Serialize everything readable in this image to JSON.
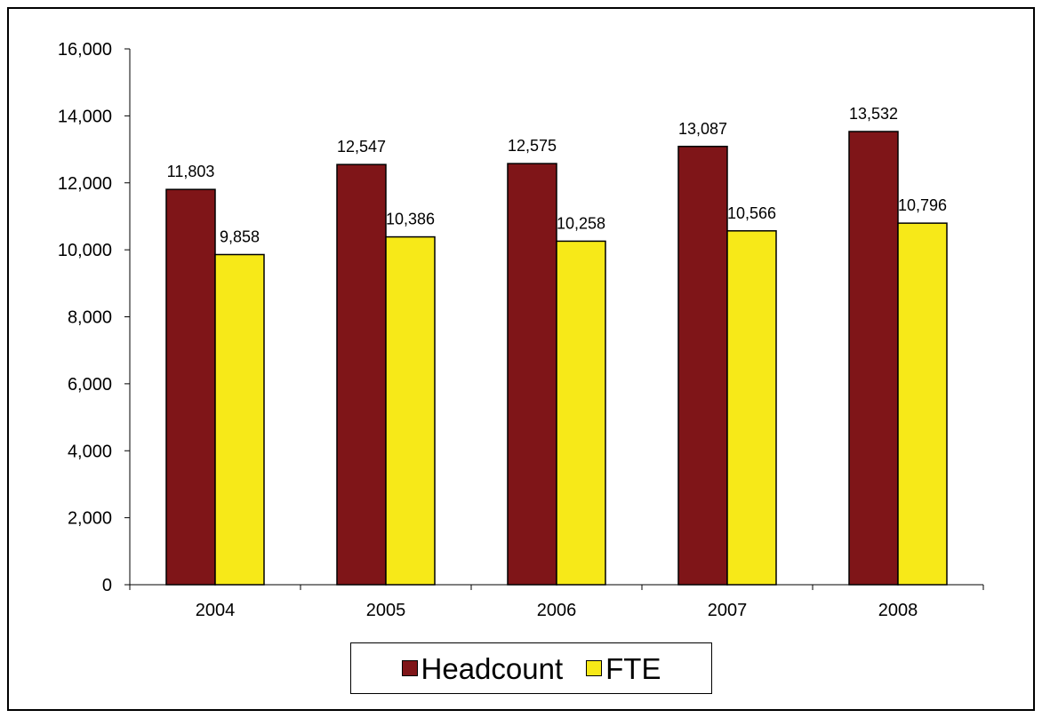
{
  "chart_data": {
    "type": "bar",
    "title": "",
    "xlabel": "",
    "ylabel": "",
    "categories": [
      "2004",
      "2005",
      "2006",
      "2007",
      "2008"
    ],
    "series": [
      {
        "name": "Headcount",
        "color": "#7f1518",
        "values": [
          11803,
          12547,
          12575,
          13087,
          13532
        ],
        "labels": [
          "11,803",
          "12,547",
          "12,575",
          "13,087",
          "13,532"
        ]
      },
      {
        "name": "FTE",
        "color": "#f7e918",
        "values": [
          9858,
          10386,
          10258,
          10566,
          10796
        ],
        "labels": [
          "9,858",
          "10,386",
          "10,258",
          "10,566",
          "10,796"
        ]
      }
    ],
    "ylim": [
      0,
      16000
    ],
    "yticks": [
      0,
      2000,
      4000,
      6000,
      8000,
      10000,
      12000,
      14000,
      16000
    ],
    "ytick_labels": [
      "0",
      "2,000",
      "4,000",
      "6,000",
      "8,000",
      "10,000",
      "12,000",
      "14,000",
      "16,000"
    ],
    "grid": false,
    "legend_position": "bottom"
  }
}
